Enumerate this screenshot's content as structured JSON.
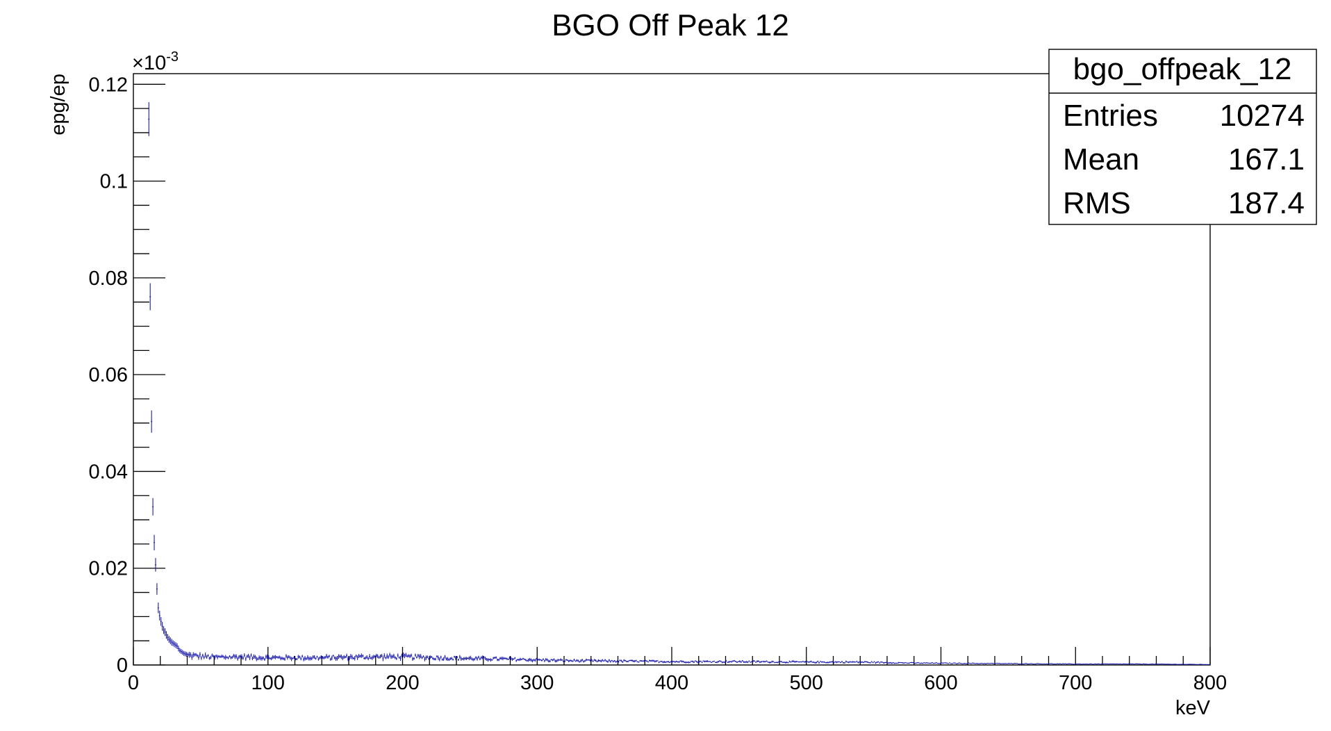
{
  "chart_data": {
    "type": "scatter",
    "title": "BGO Off Peak 12",
    "xlabel": "keV",
    "ylabel": "epg/ep",
    "y_exponent_label": "×10",
    "y_exponent_power": "-3",
    "xlim": [
      0,
      800
    ],
    "ylim": [
      0,
      0.1222
    ],
    "x_ticks": [
      "0",
      "100",
      "200",
      "300",
      "400",
      "500",
      "600",
      "700",
      "800"
    ],
    "y_ticks": [
      "0",
      "0.02",
      "0.04",
      "0.06",
      "0.08",
      "0.1",
      "0.12"
    ],
    "x_tick_values": [
      0,
      100,
      200,
      300,
      400,
      500,
      600,
      700,
      800
    ],
    "y_tick_values": [
      0,
      0.02,
      0.04,
      0.06,
      0.08,
      0.1,
      0.12
    ],
    "grid": false,
    "marker_color": "#1a1ab0",
    "stats_box": {
      "name": "bgo_offpeak_12",
      "rows": [
        {
          "label": "Entries",
          "value": "10274"
        },
        {
          "label": "Mean",
          "value": "167.1"
        },
        {
          "label": "RMS",
          "value": "187.4"
        }
      ]
    },
    "points": [
      {
        "x": 11.5,
        "y": 0.1128,
        "err": 0.0035
      },
      {
        "x": 12.5,
        "y": 0.0761,
        "err": 0.0028
      },
      {
        "x": 13.5,
        "y": 0.0503,
        "err": 0.0023
      },
      {
        "x": 14.5,
        "y": 0.0327,
        "err": 0.0018
      },
      {
        "x": 15.5,
        "y": 0.0253,
        "err": 0.0016
      },
      {
        "x": 16.5,
        "y": 0.0207,
        "err": 0.0014
      },
      {
        "x": 17.5,
        "y": 0.0157,
        "err": 0.0012
      },
      {
        "x": 18.5,
        "y": 0.0118,
        "err": 0.0011
      },
      {
        "x": 19.5,
        "y": 0.0102,
        "err": 0.001
      },
      {
        "x": 20.5,
        "y": 0.009,
        "err": 0.0009
      },
      {
        "x": 21.5,
        "y": 0.008,
        "err": 0.0009
      },
      {
        "x": 22.5,
        "y": 0.0072,
        "err": 0.0008
      },
      {
        "x": 23.5,
        "y": 0.0068,
        "err": 0.0008
      },
      {
        "x": 24.5,
        "y": 0.0062,
        "err": 0.0008
      },
      {
        "x": 25.5,
        "y": 0.0057,
        "err": 0.0007
      },
      {
        "x": 26.5,
        "y": 0.0053,
        "err": 0.0007
      },
      {
        "x": 27.5,
        "y": 0.005,
        "err": 0.0007
      },
      {
        "x": 28.5,
        "y": 0.0047,
        "err": 0.0007
      },
      {
        "x": 29.5,
        "y": 0.0045,
        "err": 0.0006
      },
      {
        "x": 30.5,
        "y": 0.0043,
        "err": 0.0006
      },
      {
        "x": 31.5,
        "y": 0.0041,
        "err": 0.0006
      },
      {
        "x": 32.5,
        "y": 0.0039,
        "err": 0.0006
      },
      {
        "x": 33.5,
        "y": 0.0034,
        "err": 0.0006
      },
      {
        "x": 34.5,
        "y": 0.003,
        "err": 0.0005
      },
      {
        "x": 35.5,
        "y": 0.0028,
        "err": 0.0005
      },
      {
        "x": 36.5,
        "y": 0.0026,
        "err": 0.0005
      },
      {
        "x": 37.5,
        "y": 0.0024,
        "err": 0.0005
      },
      {
        "x": 38.5,
        "y": 0.0023,
        "err": 0.0005
      },
      {
        "x": 39.5,
        "y": 0.0022,
        "err": 0.0005
      }
    ],
    "tail": {
      "x_start": 40,
      "x_end": 800,
      "bin_width": 1,
      "profile": [
        {
          "x": 40,
          "y": 0.002
        },
        {
          "x": 60,
          "y": 0.0016
        },
        {
          "x": 80,
          "y": 0.0017
        },
        {
          "x": 100,
          "y": 0.0015
        },
        {
          "x": 140,
          "y": 0.0015
        },
        {
          "x": 180,
          "y": 0.0017
        },
        {
          "x": 200,
          "y": 0.0017
        },
        {
          "x": 240,
          "y": 0.0014
        },
        {
          "x": 280,
          "y": 0.0012
        },
        {
          "x": 320,
          "y": 0.0009
        },
        {
          "x": 360,
          "y": 0.0008
        },
        {
          "x": 400,
          "y": 0.0007
        },
        {
          "x": 450,
          "y": 0.0007
        },
        {
          "x": 500,
          "y": 0.0006
        },
        {
          "x": 540,
          "y": 0.0006
        },
        {
          "x": 580,
          "y": 0.0004
        },
        {
          "x": 640,
          "y": 0.0003
        },
        {
          "x": 700,
          "y": 0.0002
        },
        {
          "x": 750,
          "y": 0.0002
        },
        {
          "x": 800,
          "y": 0.0001
        }
      ],
      "noise_fraction": 0.25,
      "err_fraction": 0.22
    }
  }
}
